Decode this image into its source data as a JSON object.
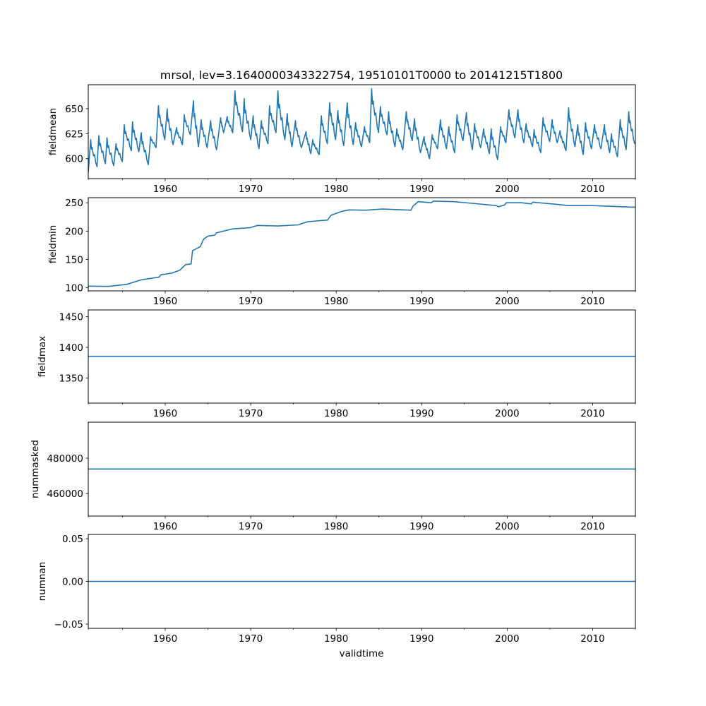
{
  "chart_data": {
    "type": "line",
    "title": "mrsol, lev=3.1640000343322754, 19510101T0000 to 20141215T1800",
    "xlabel": "validtime",
    "xlim": [
      1951.0,
      2015.0
    ],
    "xticks": [
      1960,
      1970,
      1980,
      1990,
      2000,
      2010
    ],
    "xtick_labels": [
      "1960",
      "1970",
      "1980",
      "1990",
      "2000",
      "2010"
    ],
    "xminor_ticks": [
      1951,
      1955,
      1965,
      1975,
      1985,
      1995,
      2005,
      2015
    ],
    "line_color": "#1f77b4",
    "panels": [
      {
        "ylabel": "fieldmean",
        "ylim": [
          580,
          674
        ],
        "yticks": [
          600,
          625,
          650
        ],
        "ytick_labels": [
          "600",
          "625",
          "650"
        ],
        "seasonal": true,
        "points": [
          [
            1951.0,
            586
          ],
          [
            1951.28,
            619
          ],
          [
            1952.02,
            592
          ],
          [
            1952.24,
            623
          ],
          [
            1953.01,
            595
          ],
          [
            1953.2,
            621
          ],
          [
            1953.98,
            593
          ],
          [
            1954.25,
            615
          ],
          [
            1954.99,
            597
          ],
          [
            1955.21,
            634
          ],
          [
            1956.04,
            608
          ],
          [
            1956.18,
            637
          ],
          [
            1956.92,
            607
          ],
          [
            1957.2,
            626
          ],
          [
            1958.02,
            594
          ],
          [
            1958.3,
            622
          ],
          [
            1958.93,
            611
          ],
          [
            1959.21,
            653
          ],
          [
            1959.95,
            619
          ],
          [
            1960.23,
            650
          ],
          [
            1960.92,
            614
          ],
          [
            1961.33,
            631
          ],
          [
            1962.02,
            614
          ],
          [
            1962.24,
            644
          ],
          [
            1962.93,
            624
          ],
          [
            1963.31,
            658
          ],
          [
            1963.89,
            612
          ],
          [
            1964.22,
            639
          ],
          [
            1964.91,
            611
          ],
          [
            1965.32,
            638
          ],
          [
            1966.01,
            609
          ],
          [
            1966.48,
            641
          ],
          [
            1966.84,
            626
          ],
          [
            1967.25,
            642
          ],
          [
            1967.9,
            626
          ],
          [
            1968.16,
            668
          ],
          [
            1969.04,
            627
          ],
          [
            1969.24,
            660
          ],
          [
            1970.01,
            619
          ],
          [
            1970.29,
            643
          ],
          [
            1970.97,
            610
          ],
          [
            1971.25,
            638
          ],
          [
            1972.02,
            615
          ],
          [
            1972.21,
            653
          ],
          [
            1972.96,
            626
          ],
          [
            1973.18,
            668
          ],
          [
            1974.0,
            619
          ],
          [
            1974.28,
            645
          ],
          [
            1974.83,
            612
          ],
          [
            1975.24,
            638
          ],
          [
            1975.93,
            611
          ],
          [
            1976.48,
            627
          ],
          [
            1977.03,
            605
          ],
          [
            1977.26,
            619
          ],
          [
            1978.0,
            604
          ],
          [
            1978.27,
            643
          ],
          [
            1978.96,
            615
          ],
          [
            1979.24,
            656
          ],
          [
            1979.93,
            619
          ],
          [
            1980.2,
            648
          ],
          [
            1980.89,
            613
          ],
          [
            1981.3,
            656
          ],
          [
            1981.99,
            614
          ],
          [
            1982.27,
            636
          ],
          [
            1982.96,
            612
          ],
          [
            1983.31,
            632
          ],
          [
            1983.92,
            616
          ],
          [
            1984.15,
            670
          ],
          [
            1984.95,
            626
          ],
          [
            1985.17,
            652
          ],
          [
            1985.94,
            624
          ],
          [
            1986.14,
            647
          ],
          [
            1986.88,
            612
          ],
          [
            1987.1,
            630
          ],
          [
            1987.8,
            609
          ],
          [
            1988.2,
            647
          ],
          [
            1988.9,
            618
          ],
          [
            1989.17,
            640
          ],
          [
            1989.86,
            606
          ],
          [
            1990.28,
            622
          ],
          [
            1990.91,
            600
          ],
          [
            1991.24,
            624
          ],
          [
            1991.85,
            610
          ],
          [
            1992.2,
            639
          ],
          [
            1992.9,
            610
          ],
          [
            1993.17,
            632
          ],
          [
            1993.86,
            606
          ],
          [
            1994.14,
            644
          ],
          [
            1994.83,
            618
          ],
          [
            1995.24,
            646
          ],
          [
            1995.93,
            609
          ],
          [
            1996.2,
            635
          ],
          [
            1996.9,
            611
          ],
          [
            1997.26,
            630
          ],
          [
            1997.92,
            605
          ],
          [
            1998.14,
            630
          ],
          [
            1998.88,
            599
          ],
          [
            1999.24,
            632
          ],
          [
            1999.85,
            616
          ],
          [
            2000.2,
            649
          ],
          [
            2000.9,
            621
          ],
          [
            2001.26,
            649
          ],
          [
            2001.94,
            616
          ],
          [
            2002.22,
            635
          ],
          [
            2002.97,
            612
          ],
          [
            2003.16,
            629
          ],
          [
            2003.93,
            606
          ],
          [
            2004.2,
            641
          ],
          [
            2004.98,
            617
          ],
          [
            2005.26,
            639
          ],
          [
            2005.86,
            616
          ],
          [
            2006.19,
            628
          ],
          [
            2006.88,
            608
          ],
          [
            2007.19,
            651
          ],
          [
            2007.93,
            612
          ],
          [
            2008.26,
            634
          ],
          [
            2008.9,
            604
          ],
          [
            2009.17,
            636
          ],
          [
            2009.86,
            610
          ],
          [
            2010.22,
            634
          ],
          [
            2010.97,
            610
          ],
          [
            2011.38,
            634
          ],
          [
            2011.99,
            606
          ],
          [
            2012.2,
            625
          ],
          [
            2012.9,
            602
          ],
          [
            2013.23,
            639
          ],
          [
            2013.92,
            609
          ],
          [
            2014.22,
            647
          ],
          [
            2014.91,
            615
          ]
        ]
      },
      {
        "ylabel": "fieldmin",
        "ylim": [
          94.6,
          259
        ],
        "yticks": [
          100,
          150,
          200,
          250
        ],
        "ytick_labels": [
          "100",
          "150",
          "200",
          "250"
        ],
        "seasonal": false,
        "points": [
          [
            1951,
            103
          ],
          [
            1953.3,
            102.5
          ],
          [
            1955.5,
            106
          ],
          [
            1957.2,
            114
          ],
          [
            1959.3,
            119
          ],
          [
            1959.5,
            123
          ],
          [
            1960.8,
            126
          ],
          [
            1961.7,
            131
          ],
          [
            1962.4,
            141
          ],
          [
            1963.03,
            142
          ],
          [
            1963.2,
            165.5
          ],
          [
            1964.1,
            172.6
          ],
          [
            1964.5,
            186
          ],
          [
            1965.0,
            191
          ],
          [
            1965.8,
            193
          ],
          [
            1966.0,
            197
          ],
          [
            1966.8,
            200
          ],
          [
            1967.9,
            204
          ],
          [
            1969.9,
            206
          ],
          [
            1970.8,
            210
          ],
          [
            1973.2,
            209
          ],
          [
            1975.6,
            211
          ],
          [
            1975.9,
            213
          ],
          [
            1976.7,
            216.6
          ],
          [
            1979.0,
            219.5
          ],
          [
            1979.4,
            228
          ],
          [
            1980.1,
            232
          ],
          [
            1980.7,
            235
          ],
          [
            1981.5,
            237.5
          ],
          [
            1983.5,
            237
          ],
          [
            1985.4,
            239
          ],
          [
            1988.75,
            237
          ],
          [
            1989.0,
            244.5
          ],
          [
            1989.6,
            252
          ],
          [
            1991.1,
            250
          ],
          [
            1991.4,
            253
          ],
          [
            1993.7,
            252
          ],
          [
            1995.9,
            249
          ],
          [
            1998.7,
            245
          ],
          [
            1999.0,
            243
          ],
          [
            1999.7,
            246
          ],
          [
            1999.9,
            250
          ],
          [
            2001.7,
            250
          ],
          [
            2002.8,
            248
          ],
          [
            2003.0,
            251
          ],
          [
            2005.9,
            247
          ],
          [
            2007.1,
            245
          ],
          [
            2010.0,
            245
          ],
          [
            2015.0,
            242
          ]
        ]
      },
      {
        "ylabel": "fieldmax",
        "ylim": [
          1309,
          1461
        ],
        "yticks": [
          1350,
          1400,
          1450
        ],
        "ytick_labels": [
          "1350",
          "1400",
          "1450"
        ],
        "seasonal": false,
        "points": [
          [
            1951.0,
            1385.4
          ],
          [
            2015.0,
            1385.4
          ]
        ]
      },
      {
        "ylabel": "nummasked",
        "ylim": [
          447200,
          500400
        ],
        "yticks": [
          460000,
          480000
        ],
        "ytick_labels": [
          "460000",
          "480000"
        ],
        "seasonal": false,
        "points": [
          [
            1951.0,
            473870
          ],
          [
            2015.0,
            473870
          ]
        ]
      },
      {
        "ylabel": "numnan",
        "ylim": [
          -0.055,
          0.055
        ],
        "yticks": [
          -0.05,
          0.0,
          0.05
        ],
        "ytick_labels": [
          "−0.05",
          "0.00",
          "0.05"
        ],
        "seasonal": false,
        "points": [
          [
            1951.0,
            0.0
          ],
          [
            2015.0,
            0.0
          ]
        ]
      }
    ]
  }
}
